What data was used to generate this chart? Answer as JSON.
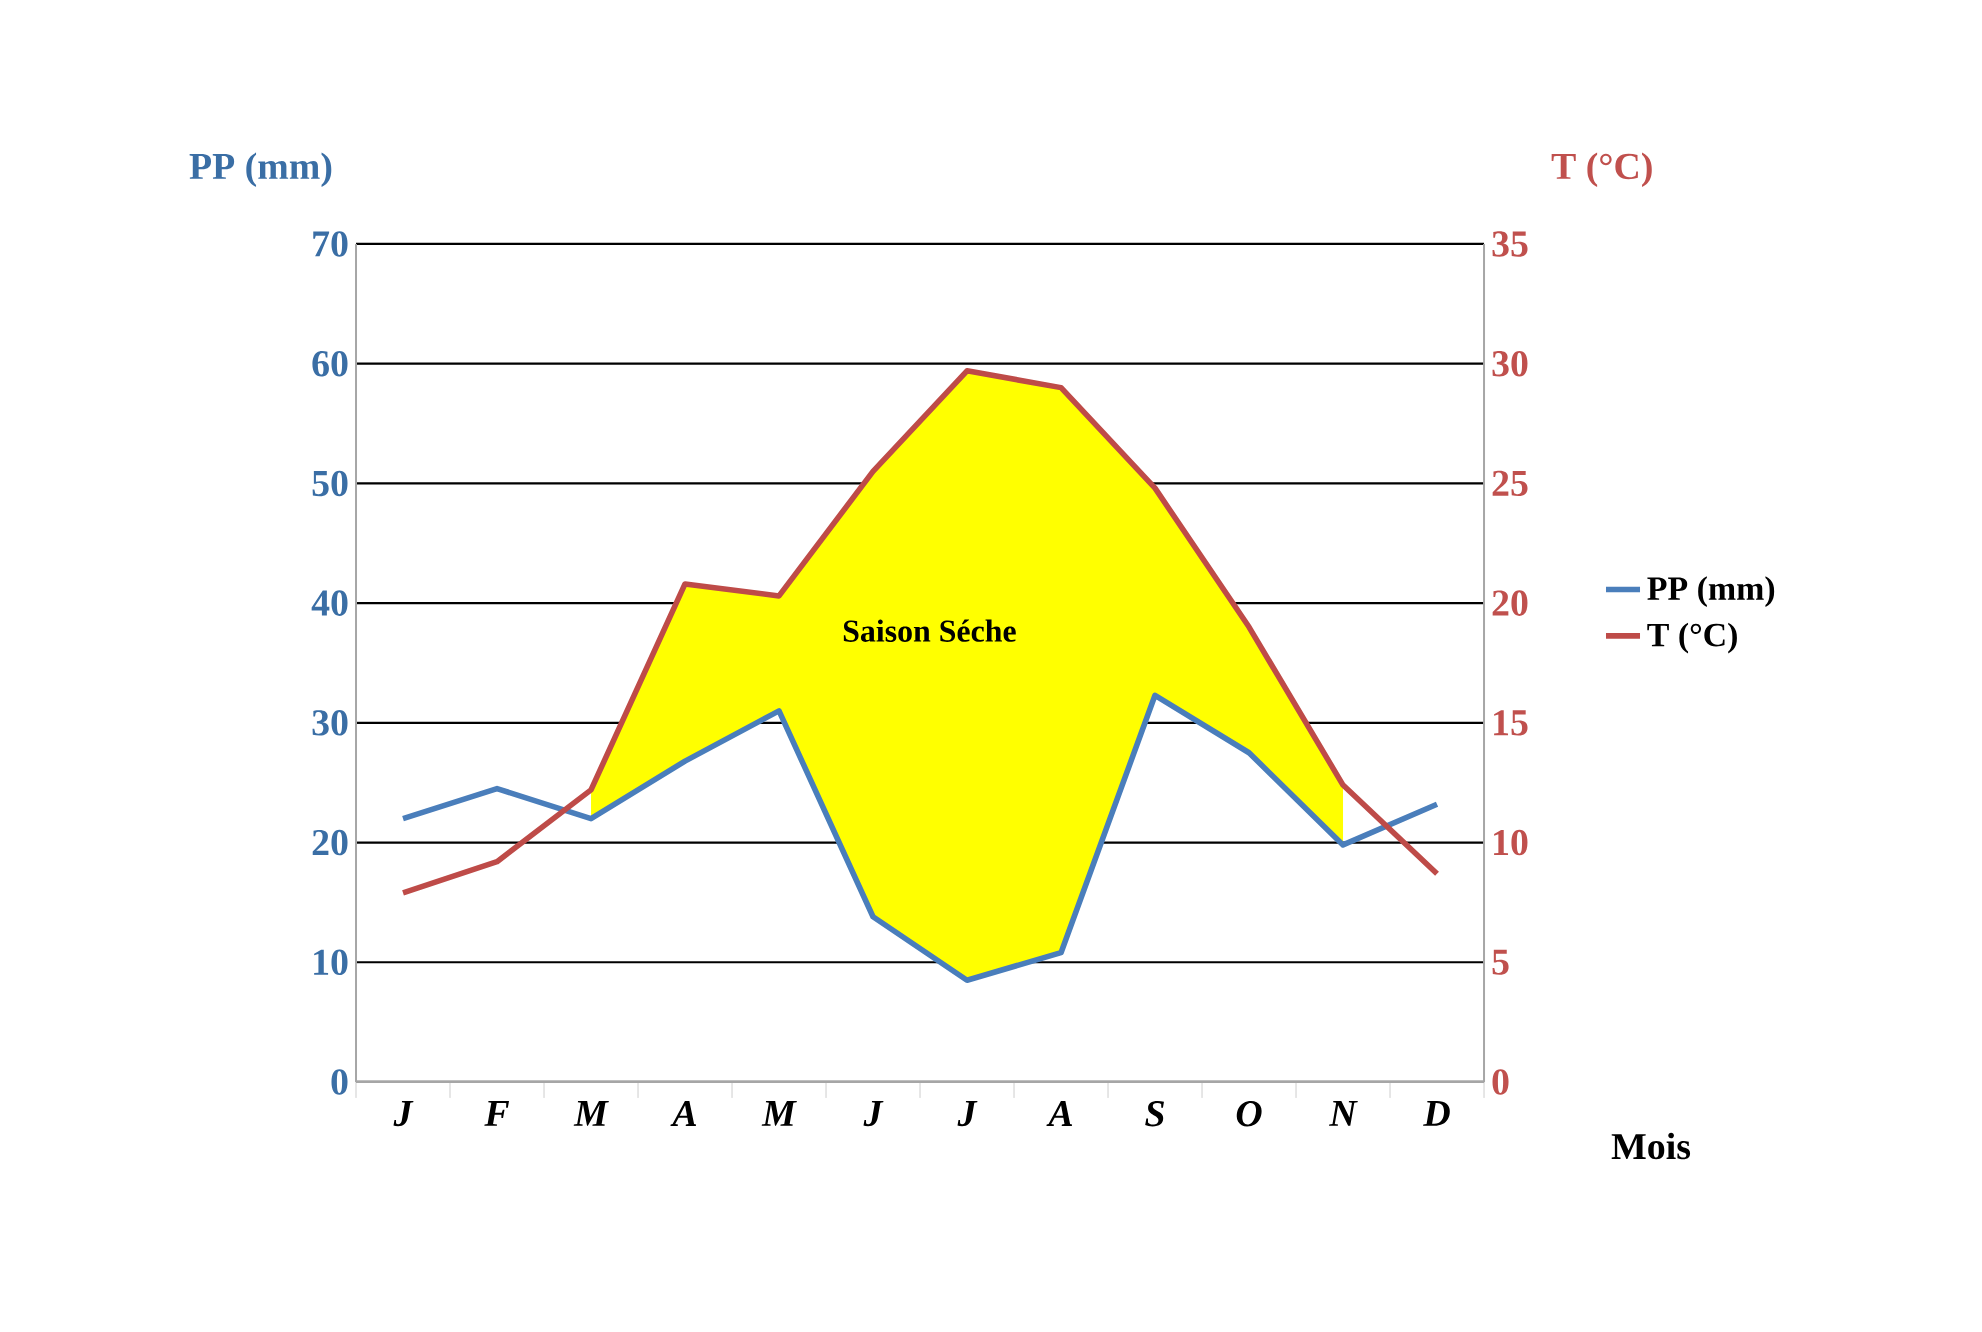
{
  "chart_data": {
    "type": "line",
    "categories": [
      "J",
      "F",
      "M",
      "A",
      "M",
      "J",
      "J",
      "A",
      "S",
      "O",
      "N",
      "D"
    ],
    "xlabel": "Mois",
    "ylabel": "PP (mm)",
    "y2label": "T (°C)",
    "series": [
      {
        "name": "PP (mm)",
        "color": "#4a7ebb",
        "values": [
          22,
          24.5,
          22,
          26.8,
          31,
          13.8,
          8.5,
          10.8,
          32.3,
          27.5,
          19.8,
          23.2
        ]
      },
      {
        "name": "T (°C)",
        "color": "#be4b48",
        "axis": "y2",
        "values": [
          7.9,
          9.2,
          12.2,
          20.8,
          20.3,
          25.5,
          29.7,
          29,
          24.8,
          19,
          12.4,
          8.7
        ]
      },
      {
        "type": "area",
        "color": "#ffff00",
        "values": [
          null,
          null,
          24.4,
          41.6,
          40.6,
          51,
          59.4,
          58,
          49.6,
          38,
          24.8,
          null
        ]
      }
    ],
    "ylim": [
      0,
      70
    ],
    "yticks": [
      0,
      10,
      20,
      30,
      40,
      50,
      60,
      70
    ],
    "y2lim": [
      0,
      35
    ],
    "y2ticks": [
      0,
      5,
      10,
      15,
      20,
      25,
      30,
      35
    ],
    "annotations": [
      "Saison Séche"
    ],
    "grid": "y",
    "legend": "right"
  }
}
